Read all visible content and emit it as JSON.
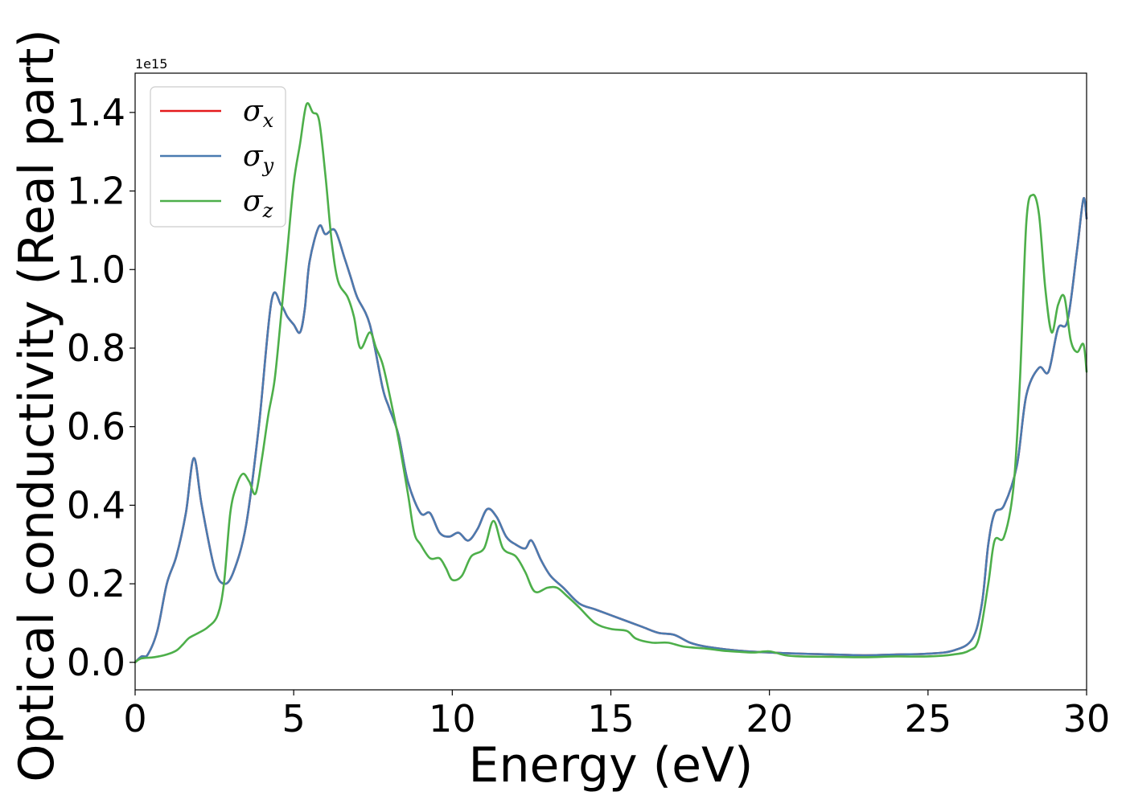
{
  "chart_data": {
    "type": "line",
    "title": "",
    "xlabel": "Energy (eV)",
    "ylabel": "Optical conductivity (Real part)",
    "y_offset_label": "1e15",
    "xlim": [
      0,
      30
    ],
    "ylim": [
      -0.07,
      1.5
    ],
    "xticks": [
      0,
      5,
      10,
      15,
      20,
      25,
      30
    ],
    "xtick_labels": [
      "0",
      "5",
      "10",
      "15",
      "20",
      "25",
      "30"
    ],
    "yticks": [
      0.0,
      0.2,
      0.4,
      0.6,
      0.8,
      1.0,
      1.2,
      1.4
    ],
    "ytick_labels": [
      "0.0",
      "0.2",
      "0.4",
      "0.6",
      "0.8",
      "1.0",
      "1.2",
      "1.4"
    ],
    "grid": false,
    "legend_position": "top-left",
    "series": [
      {
        "name": "σx",
        "symbol": "σ",
        "subscript": "x",
        "color": "#e41a1c",
        "points": [
          [
            0,
            0
          ],
          [
            0.2,
            0.015
          ],
          [
            0.4,
            0.02
          ],
          [
            0.7,
            0.08
          ],
          [
            1.0,
            0.2
          ],
          [
            1.3,
            0.27
          ],
          [
            1.6,
            0.38
          ],
          [
            1.85,
            0.52
          ],
          [
            2.1,
            0.4
          ],
          [
            2.5,
            0.24
          ],
          [
            2.8,
            0.2
          ],
          [
            3.1,
            0.23
          ],
          [
            3.5,
            0.35
          ],
          [
            3.9,
            0.6
          ],
          [
            4.3,
            0.92
          ],
          [
            4.6,
            0.91
          ],
          [
            4.8,
            0.88
          ],
          [
            5.0,
            0.86
          ],
          [
            5.2,
            0.84
          ],
          [
            5.35,
            0.9
          ],
          [
            5.5,
            1.02
          ],
          [
            5.8,
            1.11
          ],
          [
            6.0,
            1.09
          ],
          [
            6.3,
            1.1
          ],
          [
            6.6,
            1.03
          ],
          [
            6.8,
            0.98
          ],
          [
            7.0,
            0.93
          ],
          [
            7.4,
            0.86
          ],
          [
            7.8,
            0.7
          ],
          [
            8.0,
            0.65
          ],
          [
            8.3,
            0.58
          ],
          [
            8.6,
            0.46
          ],
          [
            9.0,
            0.38
          ],
          [
            9.3,
            0.38
          ],
          [
            9.6,
            0.33
          ],
          [
            9.9,
            0.32
          ],
          [
            10.2,
            0.33
          ],
          [
            10.5,
            0.31
          ],
          [
            10.8,
            0.34
          ],
          [
            11.1,
            0.39
          ],
          [
            11.4,
            0.37
          ],
          [
            11.7,
            0.32
          ],
          [
            12.0,
            0.3
          ],
          [
            12.3,
            0.29
          ],
          [
            12.5,
            0.31
          ],
          [
            12.8,
            0.26
          ],
          [
            13.1,
            0.22
          ],
          [
            13.5,
            0.19
          ],
          [
            14.0,
            0.15
          ],
          [
            14.5,
            0.135
          ],
          [
            15.0,
            0.12
          ],
          [
            15.5,
            0.105
          ],
          [
            16.0,
            0.09
          ],
          [
            16.5,
            0.075
          ],
          [
            17.0,
            0.07
          ],
          [
            17.5,
            0.05
          ],
          [
            18.0,
            0.04
          ],
          [
            19.0,
            0.03
          ],
          [
            20.0,
            0.025
          ],
          [
            21.0,
            0.022
          ],
          [
            22.0,
            0.02
          ],
          [
            23.0,
            0.018
          ],
          [
            24.0,
            0.02
          ],
          [
            25.0,
            0.022
          ],
          [
            25.8,
            0.03
          ],
          [
            26.4,
            0.06
          ],
          [
            26.7,
            0.15
          ],
          [
            26.9,
            0.3
          ],
          [
            27.1,
            0.38
          ],
          [
            27.4,
            0.4
          ],
          [
            27.8,
            0.5
          ],
          [
            28.1,
            0.68
          ],
          [
            28.5,
            0.75
          ],
          [
            28.8,
            0.74
          ],
          [
            29.1,
            0.85
          ],
          [
            29.4,
            0.87
          ],
          [
            29.7,
            1.05
          ],
          [
            29.9,
            1.18
          ],
          [
            30.0,
            1.13
          ]
        ]
      },
      {
        "name": "σy",
        "symbol": "σ",
        "subscript": "y",
        "color": "#4a7bb0",
        "points": [
          [
            0,
            0
          ],
          [
            0.2,
            0.015
          ],
          [
            0.4,
            0.02
          ],
          [
            0.7,
            0.08
          ],
          [
            1.0,
            0.2
          ],
          [
            1.3,
            0.27
          ],
          [
            1.6,
            0.38
          ],
          [
            1.85,
            0.52
          ],
          [
            2.1,
            0.4
          ],
          [
            2.5,
            0.24
          ],
          [
            2.8,
            0.2
          ],
          [
            3.1,
            0.23
          ],
          [
            3.5,
            0.35
          ],
          [
            3.9,
            0.6
          ],
          [
            4.3,
            0.92
          ],
          [
            4.6,
            0.91
          ],
          [
            4.8,
            0.88
          ],
          [
            5.0,
            0.86
          ],
          [
            5.2,
            0.84
          ],
          [
            5.35,
            0.9
          ],
          [
            5.5,
            1.02
          ],
          [
            5.8,
            1.11
          ],
          [
            6.0,
            1.09
          ],
          [
            6.3,
            1.1
          ],
          [
            6.6,
            1.03
          ],
          [
            6.8,
            0.98
          ],
          [
            7.0,
            0.93
          ],
          [
            7.4,
            0.86
          ],
          [
            7.8,
            0.7
          ],
          [
            8.0,
            0.65
          ],
          [
            8.3,
            0.58
          ],
          [
            8.6,
            0.46
          ],
          [
            9.0,
            0.38
          ],
          [
            9.3,
            0.38
          ],
          [
            9.6,
            0.33
          ],
          [
            9.9,
            0.32
          ],
          [
            10.2,
            0.33
          ],
          [
            10.5,
            0.31
          ],
          [
            10.8,
            0.34
          ],
          [
            11.1,
            0.39
          ],
          [
            11.4,
            0.37
          ],
          [
            11.7,
            0.32
          ],
          [
            12.0,
            0.3
          ],
          [
            12.3,
            0.29
          ],
          [
            12.5,
            0.31
          ],
          [
            12.8,
            0.26
          ],
          [
            13.1,
            0.22
          ],
          [
            13.5,
            0.19
          ],
          [
            14.0,
            0.15
          ],
          [
            14.5,
            0.135
          ],
          [
            15.0,
            0.12
          ],
          [
            15.5,
            0.105
          ],
          [
            16.0,
            0.09
          ],
          [
            16.5,
            0.075
          ],
          [
            17.0,
            0.07
          ],
          [
            17.5,
            0.05
          ],
          [
            18.0,
            0.04
          ],
          [
            19.0,
            0.03
          ],
          [
            20.0,
            0.025
          ],
          [
            21.0,
            0.022
          ],
          [
            22.0,
            0.02
          ],
          [
            23.0,
            0.018
          ],
          [
            24.0,
            0.02
          ],
          [
            25.0,
            0.022
          ],
          [
            25.8,
            0.03
          ],
          [
            26.4,
            0.06
          ],
          [
            26.7,
            0.15
          ],
          [
            26.9,
            0.3
          ],
          [
            27.1,
            0.38
          ],
          [
            27.4,
            0.4
          ],
          [
            27.8,
            0.5
          ],
          [
            28.1,
            0.68
          ],
          [
            28.5,
            0.75
          ],
          [
            28.8,
            0.74
          ],
          [
            29.1,
            0.85
          ],
          [
            29.4,
            0.87
          ],
          [
            29.7,
            1.05
          ],
          [
            29.9,
            1.18
          ],
          [
            30.0,
            1.13
          ]
        ]
      },
      {
        "name": "σz",
        "symbol": "σ",
        "subscript": "z",
        "color": "#4daf4a",
        "points": [
          [
            0,
            0
          ],
          [
            0.2,
            0.01
          ],
          [
            0.6,
            0.013
          ],
          [
            1.0,
            0.02
          ],
          [
            1.3,
            0.03
          ],
          [
            1.5,
            0.045
          ],
          [
            1.7,
            0.062
          ],
          [
            2.0,
            0.075
          ],
          [
            2.3,
            0.09
          ],
          [
            2.6,
            0.12
          ],
          [
            2.8,
            0.2
          ],
          [
            3.0,
            0.38
          ],
          [
            3.2,
            0.45
          ],
          [
            3.4,
            0.48
          ],
          [
            3.6,
            0.46
          ],
          [
            3.8,
            0.43
          ],
          [
            4.0,
            0.52
          ],
          [
            4.2,
            0.63
          ],
          [
            4.4,
            0.72
          ],
          [
            4.6,
            0.88
          ],
          [
            4.8,
            1.05
          ],
          [
            5.0,
            1.22
          ],
          [
            5.2,
            1.32
          ],
          [
            5.4,
            1.42
          ],
          [
            5.6,
            1.4
          ],
          [
            5.8,
            1.38
          ],
          [
            6.0,
            1.24
          ],
          [
            6.2,
            1.07
          ],
          [
            6.4,
            0.97
          ],
          [
            6.7,
            0.93
          ],
          [
            6.9,
            0.88
          ],
          [
            7.1,
            0.8
          ],
          [
            7.4,
            0.84
          ],
          [
            7.6,
            0.8
          ],
          [
            7.8,
            0.76
          ],
          [
            8.0,
            0.69
          ],
          [
            8.3,
            0.57
          ],
          [
            8.6,
            0.43
          ],
          [
            8.8,
            0.33
          ],
          [
            9.0,
            0.3
          ],
          [
            9.3,
            0.265
          ],
          [
            9.6,
            0.265
          ],
          [
            9.8,
            0.24
          ],
          [
            10.0,
            0.21
          ],
          [
            10.3,
            0.22
          ],
          [
            10.6,
            0.27
          ],
          [
            11.0,
            0.29
          ],
          [
            11.3,
            0.36
          ],
          [
            11.6,
            0.29
          ],
          [
            12.0,
            0.27
          ],
          [
            12.3,
            0.23
          ],
          [
            12.6,
            0.18
          ],
          [
            13.0,
            0.19
          ],
          [
            13.3,
            0.19
          ],
          [
            13.6,
            0.17
          ],
          [
            14.0,
            0.14
          ],
          [
            14.5,
            0.1
          ],
          [
            15.0,
            0.085
          ],
          [
            15.5,
            0.08
          ],
          [
            15.8,
            0.06
          ],
          [
            16.3,
            0.05
          ],
          [
            16.8,
            0.05
          ],
          [
            17.3,
            0.04
          ],
          [
            18.0,
            0.035
          ],
          [
            18.5,
            0.03
          ],
          [
            19.0,
            0.027
          ],
          [
            19.5,
            0.025
          ],
          [
            20.0,
            0.028
          ],
          [
            20.5,
            0.018
          ],
          [
            21.0,
            0.015
          ],
          [
            22.0,
            0.014
          ],
          [
            23.0,
            0.013
          ],
          [
            24.0,
            0.015
          ],
          [
            25.0,
            0.015
          ],
          [
            25.8,
            0.02
          ],
          [
            26.3,
            0.03
          ],
          [
            26.6,
            0.06
          ],
          [
            26.9,
            0.2
          ],
          [
            27.1,
            0.31
          ],
          [
            27.4,
            0.32
          ],
          [
            27.7,
            0.45
          ],
          [
            27.9,
            0.72
          ],
          [
            28.1,
            1.12
          ],
          [
            28.3,
            1.19
          ],
          [
            28.5,
            1.14
          ],
          [
            28.7,
            0.95
          ],
          [
            28.9,
            0.84
          ],
          [
            29.1,
            0.91
          ],
          [
            29.3,
            0.93
          ],
          [
            29.5,
            0.82
          ],
          [
            29.7,
            0.79
          ],
          [
            29.9,
            0.81
          ],
          [
            30.0,
            0.74
          ]
        ]
      }
    ]
  }
}
